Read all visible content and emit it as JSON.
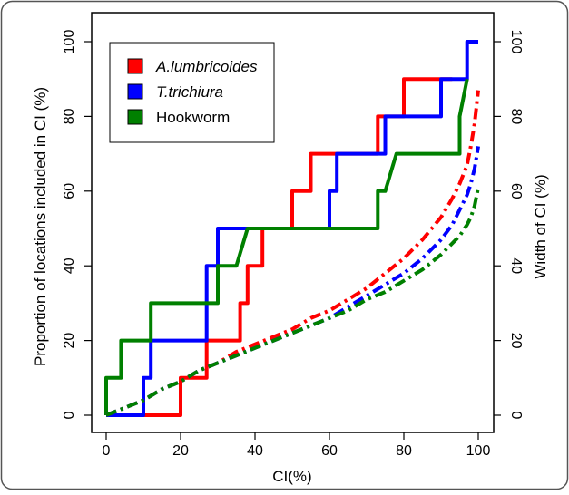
{
  "chart_data": {
    "type": "line",
    "xlabel": "CI(%)",
    "ylabel_left": "Proportion of locations included in CI (%)",
    "ylabel_right": "Width of CI (%)",
    "xlim": [
      0,
      100
    ],
    "ylim_left": [
      0,
      100
    ],
    "ylim_right": [
      0,
      100
    ],
    "x_ticks": [
      "0",
      "20",
      "40",
      "60",
      "80",
      "100"
    ],
    "y_left_ticks": [
      "0",
      "20",
      "40",
      "60",
      "80",
      "100"
    ],
    "y_right_ticks": [
      "0",
      "20",
      "40",
      "60",
      "80",
      "100"
    ],
    "legend_position": "top-left",
    "series": [
      {
        "name": "A.lumbricoides",
        "color": "#ff0000",
        "style": "solid-step",
        "x": [
          0,
          20,
          20,
          27,
          27,
          36,
          36,
          38,
          38,
          42,
          42,
          50,
          50,
          55,
          55,
          61,
          61,
          73,
          73,
          75,
          75,
          80,
          80,
          93,
          93
        ],
        "y": [
          0,
          0,
          10,
          10,
          20,
          20,
          30,
          30,
          40,
          40,
          50,
          50,
          60,
          60,
          70,
          70,
          70,
          70,
          80,
          80,
          80,
          80,
          90,
          90,
          90
        ]
      },
      {
        "name": "T.trichiura",
        "color": "#0000ff",
        "style": "solid-step",
        "x": [
          0,
          10,
          10,
          12,
          12,
          14,
          14,
          27,
          27,
          30,
          30,
          34,
          34,
          60,
          60,
          62,
          62,
          75,
          75,
          76,
          76,
          90,
          90,
          97,
          97,
          100
        ],
        "y": [
          0,
          0,
          10,
          10,
          20,
          20,
          20,
          20,
          40,
          40,
          50,
          50,
          50,
          50,
          60,
          60,
          70,
          70,
          80,
          80,
          80,
          80,
          90,
          90,
          100,
          100
        ]
      },
      {
        "name": "Hookworm",
        "color": "#008000",
        "style": "solid-step",
        "x": [
          0,
          0,
          1,
          1,
          4,
          4,
          12,
          12,
          30,
          30,
          35,
          35,
          38,
          38,
          73,
          73,
          75,
          75,
          78,
          78,
          95,
          95,
          97
        ],
        "y": [
          0,
          10,
          10,
          10,
          10,
          20,
          20,
          30,
          30,
          40,
          40,
          40,
          50,
          50,
          50,
          60,
          60,
          60,
          70,
          70,
          70,
          80,
          90
        ]
      },
      {
        "name": "A.lumbricoides",
        "color": "#ff0000",
        "style": "dashed",
        "x": [
          0,
          5,
          10,
          15,
          20,
          25,
          30,
          35,
          40,
          45,
          50,
          55,
          60,
          65,
          70,
          75,
          80,
          85,
          90,
          93,
          95,
          97,
          98,
          99,
          100
        ],
        "y": [
          0,
          2,
          4,
          7,
          9,
          12,
          14,
          17,
          19,
          21,
          23,
          26,
          28,
          31,
          34,
          38,
          42,
          47,
          53,
          58,
          62,
          67,
          72,
          78,
          87
        ]
      },
      {
        "name": "T.trichiura",
        "color": "#0000ff",
        "style": "dashed",
        "x": [
          0,
          5,
          10,
          15,
          20,
          25,
          30,
          35,
          40,
          45,
          50,
          55,
          60,
          65,
          70,
          75,
          80,
          85,
          90,
          93,
          95,
          97,
          98,
          99,
          100
        ],
        "y": [
          0,
          2,
          4,
          7,
          9,
          12,
          14,
          16,
          18,
          20,
          22,
          24,
          26,
          29,
          32,
          35,
          38,
          42,
          47,
          51,
          55,
          59,
          62,
          66,
          72
        ]
      },
      {
        "name": "Hookworm",
        "color": "#008000",
        "style": "dashed",
        "x": [
          0,
          5,
          10,
          15,
          20,
          25,
          30,
          35,
          40,
          45,
          50,
          55,
          60,
          65,
          70,
          75,
          80,
          85,
          90,
          93,
          95,
          97,
          98,
          99,
          100
        ],
        "y": [
          0,
          2,
          4,
          7,
          9,
          12,
          14,
          16,
          18,
          20,
          22,
          24,
          26,
          28,
          31,
          33,
          36,
          39,
          43,
          46,
          48,
          51,
          53,
          56,
          61
        ]
      }
    ]
  }
}
